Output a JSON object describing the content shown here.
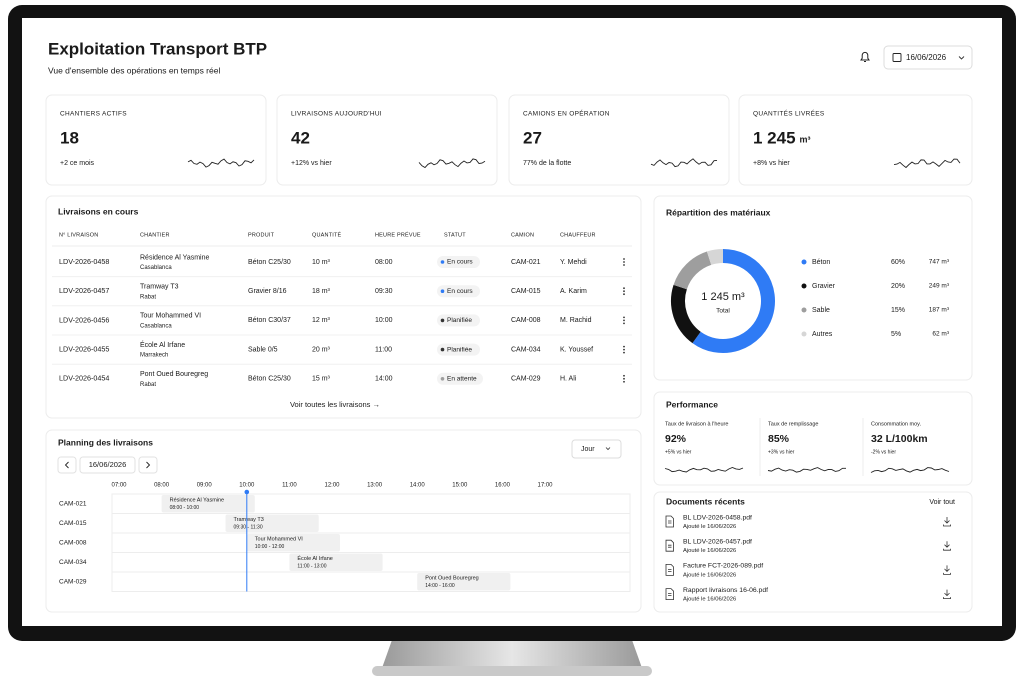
{
  "header": {
    "title": "Exploitation Transport BTP",
    "subtitle": "Vue d'ensemble des opérations en temps réel",
    "date": "16/06/2026"
  },
  "kpis": [
    {
      "label": "CHANTIERS ACTIFS",
      "value": "18",
      "note": "+2 ce mois"
    },
    {
      "label": "LIVRAISONS AUJOURD'HUI",
      "value": "42",
      "note": "+12% vs hier"
    },
    {
      "label": "CAMIONS EN OPÉRATION",
      "value": "27",
      "note": "77% de la flotte"
    },
    {
      "label": "QUANTITÉS LIVRÉES",
      "value": "1 245",
      "unit": "m³",
      "note": "+8% vs hier"
    }
  ],
  "deliveries": {
    "title": "Livraisons en cours",
    "columns": [
      "N° LIVRAISON",
      "CHANTIER",
      "PRODUIT",
      "QUANTITÉ",
      "HEURE PRÉVUE",
      "STATUT",
      "CAMION",
      "CHAUFFEUR"
    ],
    "rows": [
      {
        "id": "LDV-2026-0458",
        "site": "Résidence Al Yasmine",
        "city": "Casablanca",
        "product": "Béton C25/30",
        "quantity": "10 m³",
        "time": "08:00",
        "status": "En cours",
        "status_color": "#2f7bf5",
        "truck": "CAM-021",
        "driver": "Y. Mehdi"
      },
      {
        "id": "LDV-2026-0457",
        "site": "Tramway T3",
        "city": "Rabat",
        "product": "Gravier 8/16",
        "quantity": "18 m³",
        "time": "09:30",
        "status": "En cours",
        "status_color": "#2f7bf5",
        "truck": "CAM-015",
        "driver": "A. Karim"
      },
      {
        "id": "LDV-2026-0456",
        "site": "Tour Mohammed VI",
        "city": "Casablanca",
        "product": "Béton C30/37",
        "quantity": "12 m³",
        "time": "10:00",
        "status": "Planifiée",
        "status_color": "#333333",
        "truck": "CAM-008",
        "driver": "M. Rachid"
      },
      {
        "id": "LDV-2026-0455",
        "site": "École Al Irfane",
        "city": "Marrakech",
        "product": "Sable 0/5",
        "quantity": "20 m³",
        "time": "11:00",
        "status": "Planifiée",
        "status_color": "#333333",
        "truck": "CAM-034",
        "driver": "K. Youssef"
      },
      {
        "id": "LDV-2026-0454",
        "site": "Pont Oued Bouregreg",
        "city": "Rabat",
        "product": "Béton C25/30",
        "quantity": "15 m³",
        "time": "14:00",
        "status": "En attente",
        "status_color": "#9e9e9e",
        "truck": "CAM-029",
        "driver": "H. Ali"
      }
    ],
    "link": "Voir toutes les livraisons →"
  },
  "materials": {
    "title": "Répartition des matériaux",
    "total": "1 245 m³",
    "total_label": "Total",
    "names": [
      "Béton",
      "Gravier",
      "Sable",
      "Autres"
    ],
    "values": [
      60,
      20,
      15,
      5
    ],
    "value_labels": [
      "60%",
      "20%",
      "15%",
      "5%"
    ],
    "quantities": [
      "747 m³",
      "249 m³",
      "187 m³",
      "62 m³"
    ],
    "colors": [
      "#2f7bf5",
      "#111111",
      "#9e9e9e",
      "#d6d6d6"
    ]
  },
  "performance": {
    "title": "Performance",
    "items": [
      {
        "label": "Taux de livraison à l'heure",
        "value": "92%",
        "note": "+5% vs hier"
      },
      {
        "label": "Taux de remplissage",
        "value": "85%",
        "note": "+3% vs hier"
      },
      {
        "label": "Consommation moy.",
        "value": "32 L/100km",
        "note": "-2% vs hier"
      }
    ]
  },
  "planning": {
    "title": "Planning des livraisons",
    "view": "Jour",
    "date": "16/06/2026",
    "hours": [
      "07:00",
      "08:00",
      "09:00",
      "10:00",
      "11:00",
      "12:00",
      "13:00",
      "14:00",
      "15:00",
      "16:00",
      "17:00"
    ],
    "rows": [
      {
        "truck": "CAM-021",
        "site": "Résidence Al Yasmine",
        "time": "08:00 - 10:00"
      },
      {
        "truck": "CAM-015",
        "site": "Tramway T3",
        "time": "09:30 - 11:30"
      },
      {
        "truck": "CAM-008",
        "site": "Tour Mohammed VI",
        "time": "10:00 - 12:00"
      },
      {
        "truck": "CAM-034",
        "site": "École Al Irfane",
        "time": "11:00 - 13:00"
      },
      {
        "truck": "CAM-029",
        "site": "Pont Oued Bouregreg",
        "time": "14:00 - 16:00"
      }
    ]
  },
  "documents": {
    "title": "Documents récents",
    "link": "Voir tout",
    "items": [
      {
        "name": "BL LDV-2026-0458.pdf",
        "date": "Ajouté le 16/06/2026"
      },
      {
        "name": "BL LDV-2026-0457.pdf",
        "date": "Ajouté le 16/06/2026"
      },
      {
        "name": "Facture FCT-2026-089.pdf",
        "date": "Ajouté le 16/06/2026"
      },
      {
        "name": "Rapport livraisons 16-06.pdf",
        "date": "Ajouté le 16/06/2026"
      }
    ]
  }
}
